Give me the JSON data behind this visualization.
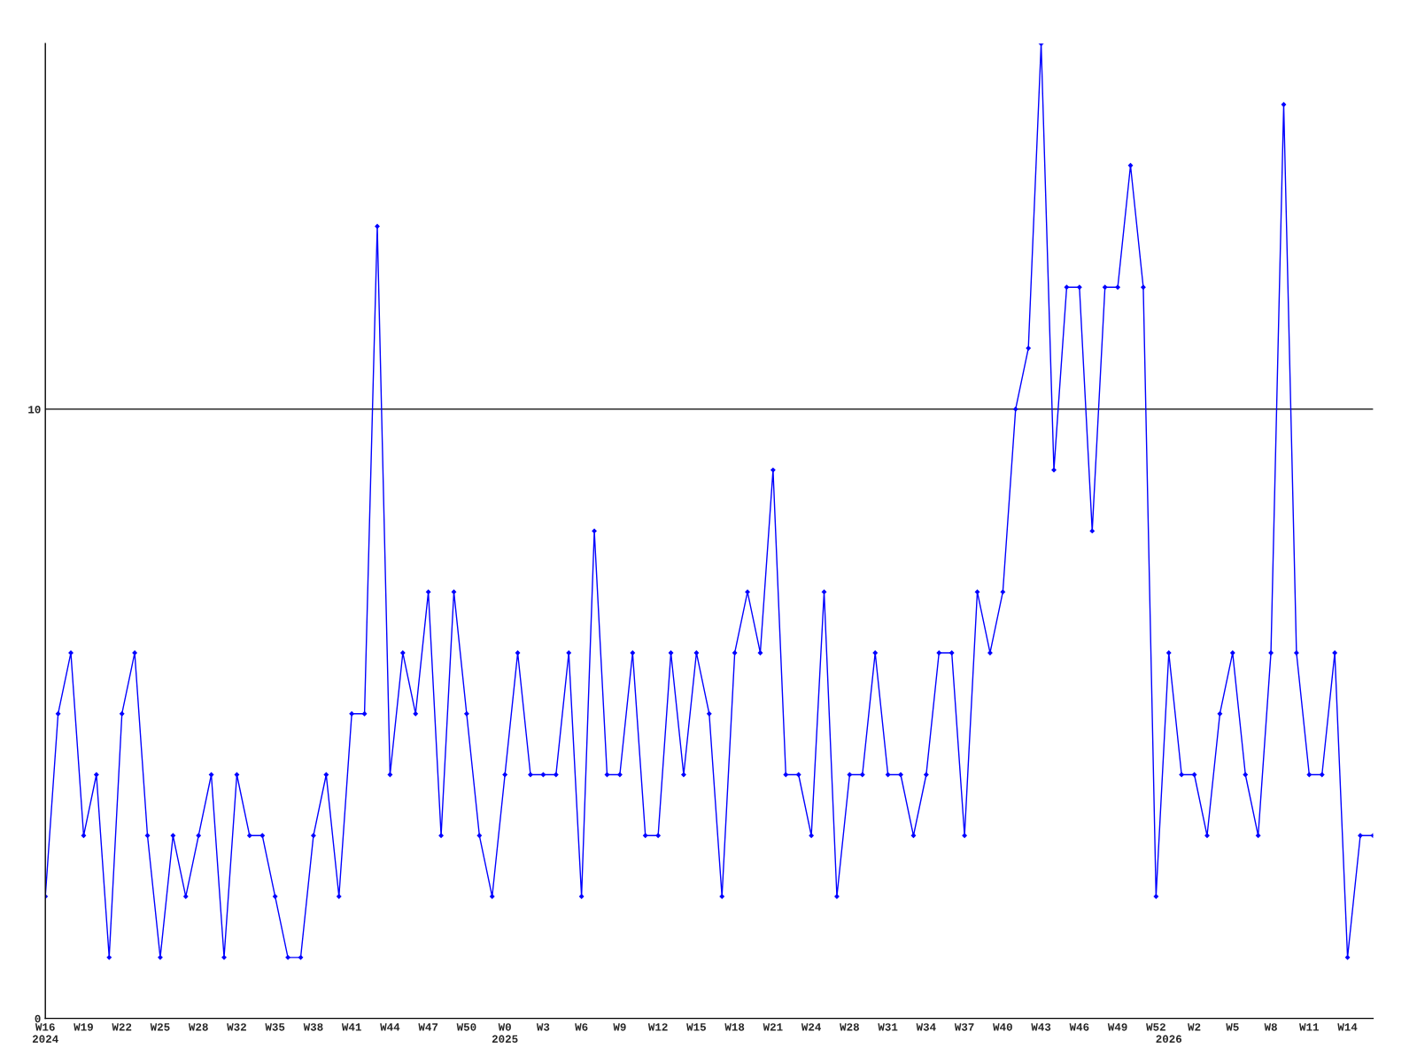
{
  "chart_data": {
    "type": "line",
    "categories": [
      "W16\n2024",
      null,
      null,
      "W19",
      null,
      null,
      "W22",
      null,
      null,
      "W25",
      null,
      null,
      "W28",
      null,
      null,
      "W32",
      null,
      null,
      "W35",
      null,
      null,
      "W38",
      null,
      null,
      "W41",
      null,
      null,
      "W44",
      null,
      null,
      "W47",
      null,
      null,
      "W50",
      null,
      null,
      "W0\n2025",
      null,
      null,
      "W3",
      null,
      null,
      "W6",
      null,
      null,
      "W9",
      null,
      null,
      "W12",
      null,
      null,
      "W15",
      null,
      null,
      "W18",
      null,
      null,
      "W21",
      null,
      null,
      "W24",
      null,
      null,
      "W28",
      null,
      null,
      "W31",
      null,
      null,
      "W34",
      null,
      null,
      "W37",
      null,
      null,
      "W40",
      null,
      null,
      "W43",
      null,
      null,
      "W46",
      null,
      null,
      "W49",
      null,
      null,
      "W52",
      "\n2026",
      null,
      "W2",
      null,
      null,
      "W5",
      null,
      null,
      "W8",
      null,
      null,
      "W11",
      null,
      null,
      "W14",
      null,
      null
    ],
    "series": [
      {
        "color": "#0000ff",
        "values": [
          2,
          5,
          6,
          3,
          4,
          1,
          5,
          6,
          3,
          1,
          3,
          2,
          3,
          4,
          1,
          4,
          3,
          3,
          2,
          1,
          1,
          3,
          4,
          2,
          5,
          5,
          13,
          4,
          6,
          5,
          7,
          3,
          7,
          5,
          3,
          2,
          4,
          6,
          4,
          4,
          4,
          6,
          2,
          8,
          4,
          4,
          6,
          3,
          3,
          6,
          4,
          6,
          5,
          2,
          6,
          7,
          6,
          9,
          4,
          4,
          3,
          7,
          2,
          4,
          4,
          6,
          4,
          4,
          3,
          4,
          6,
          6,
          3,
          7,
          6,
          7,
          10,
          11,
          16,
          9,
          12,
          12,
          8,
          12,
          12,
          14,
          12,
          2,
          6,
          4,
          4,
          3,
          5,
          6,
          4,
          3,
          6,
          15,
          6,
          4,
          4,
          6,
          1,
          3,
          3
        ]
      }
    ],
    "ylim": [
      0,
      16
    ],
    "yticks": [
      0,
      10
    ],
    "ref_lines": [
      {
        "axis": "y",
        "value": 10,
        "color": "#000000"
      }
    ],
    "marker": "diamond",
    "line_style": "solid",
    "grid": false,
    "legend": false
  }
}
